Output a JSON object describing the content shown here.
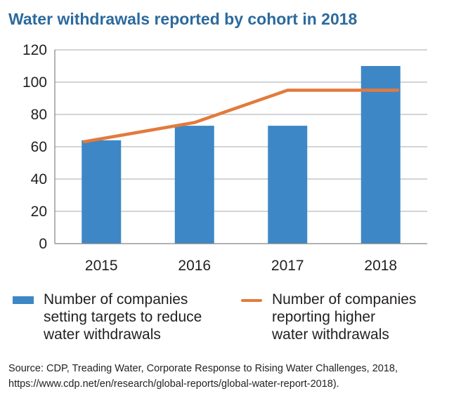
{
  "chart_data": {
    "type": "bar",
    "title": "Water withdrawals reported by cohort in 2018",
    "categories": [
      "2015",
      "2016",
      "2017",
      "2018"
    ],
    "ylim": [
      0,
      120
    ],
    "yticks": [
      0,
      20,
      40,
      60,
      80,
      100,
      120
    ],
    "grid": true,
    "legend_position": "bottom",
    "series": [
      {
        "name": "Number of companies setting targets to reduce water withdrawals",
        "type": "bar",
        "color": "#3d87c6",
        "values": [
          64,
          73,
          73,
          110
        ]
      },
      {
        "name": "Number of companies reporting higher water withdrawals",
        "type": "line",
        "color": "#e37a3c",
        "values": [
          63,
          75,
          95,
          95
        ]
      }
    ]
  },
  "legend": {
    "bar_label": "Number of companies\nsetting targets to reduce\nwater withdrawals",
    "line_label": "Number of companies\nreporting higher\nwater withdrawals"
  },
  "source": "Source: CDP, Treading Water, Corporate Response to Rising Water Challenges, 2018, https://www.cdp.net/en/research/global-reports/global-water-report-2018)."
}
